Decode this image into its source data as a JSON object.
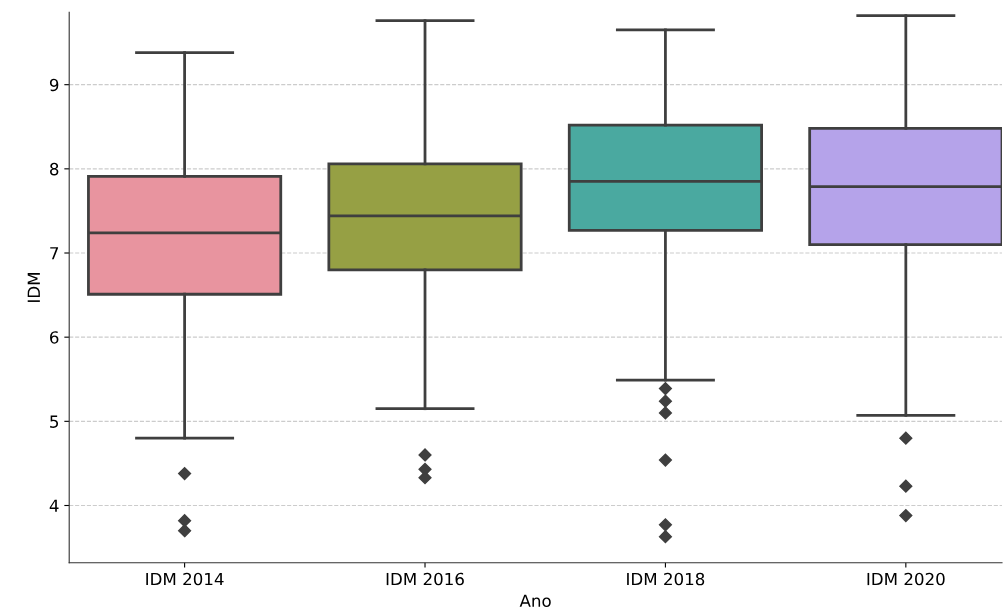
{
  "chart_data": {
    "type": "box",
    "xlabel": "Ano",
    "ylabel": "IDM",
    "categories": [
      "IDM 2014",
      "IDM 2016",
      "IDM 2018",
      "IDM 2020"
    ],
    "colors": [
      "#e8949f",
      "#96a044",
      "#4aa9a0",
      "#b5a3ea"
    ],
    "boxes": [
      {
        "low": 4.8,
        "q1": 6.51,
        "median": 7.24,
        "q3": 7.91,
        "high": 9.38,
        "outliers": [
          4.38,
          3.82,
          3.7
        ]
      },
      {
        "low": 5.15,
        "q1": 6.8,
        "median": 7.44,
        "q3": 8.06,
        "high": 9.76,
        "outliers": [
          4.6,
          4.43,
          4.33
        ]
      },
      {
        "low": 5.49,
        "q1": 7.27,
        "median": 7.85,
        "q3": 8.52,
        "high": 9.65,
        "outliers": [
          5.39,
          5.24,
          5.1,
          4.54,
          3.77,
          3.63
        ]
      },
      {
        "low": 5.07,
        "q1": 7.1,
        "median": 7.79,
        "q3": 8.48,
        "high": 9.82,
        "outliers": [
          4.8,
          4.23,
          3.88
        ]
      }
    ],
    "ylim": [
      3.32,
      9.86
    ],
    "yticks": [
      4,
      5,
      6,
      7,
      8,
      9
    ],
    "grid": "y",
    "marker": "diamond"
  }
}
